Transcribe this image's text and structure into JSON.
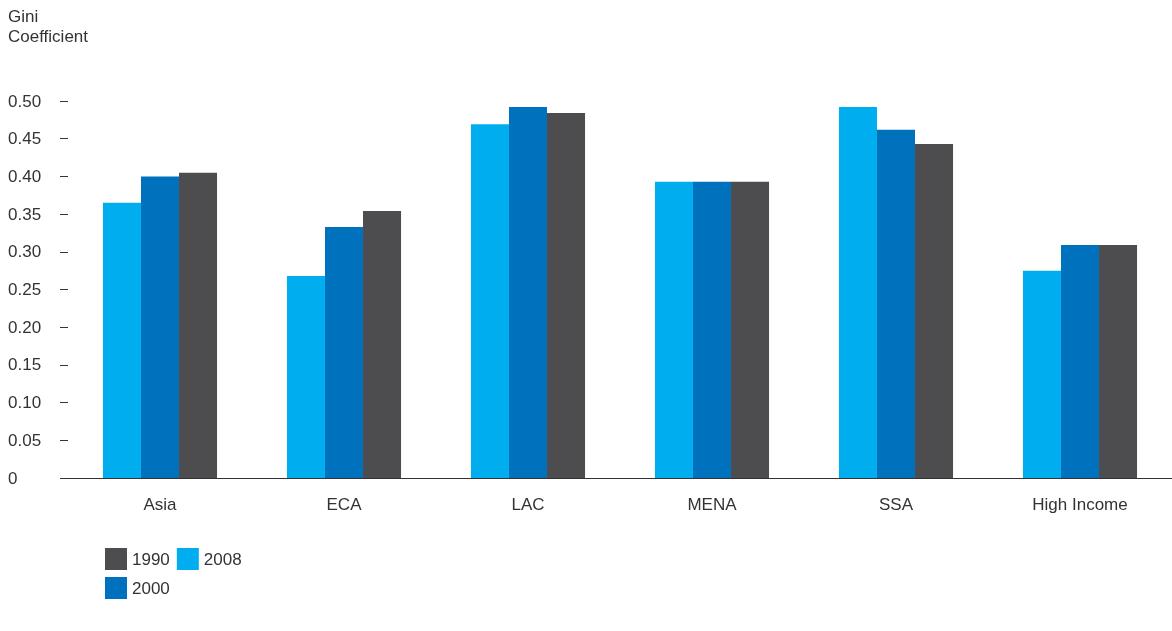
{
  "chart_data": {
    "type": "bar",
    "ylabel": "Gini Coefficient",
    "categories": [
      "Asia",
      "ECA",
      "LAC",
      "MENA",
      "SSA",
      "High Income"
    ],
    "series": [
      {
        "name": "2008",
        "color": "#00aeef",
        "values": [
          0.365,
          0.268,
          0.469,
          0.393,
          0.492,
          0.275
        ]
      },
      {
        "name": "2000",
        "color": "#0071bc",
        "values": [
          0.4,
          0.333,
          0.492,
          0.393,
          0.462,
          0.309
        ]
      },
      {
        "name": "1990",
        "color": "#4d4d4f",
        "values": [
          0.405,
          0.354,
          0.484,
          0.393,
          0.443,
          0.309
        ]
      }
    ],
    "ylim": [
      0,
      0.5
    ],
    "yticks": [
      0,
      {
        "value": 0.05,
        "label": "0.05"
      },
      {
        "value": 0.1,
        "label": "0.10"
      },
      {
        "value": 0.15,
        "label": "0.15"
      },
      {
        "value": 0.2,
        "label": "0.20"
      },
      {
        "value": 0.25,
        "label": "0.25"
      },
      {
        "value": 0.3,
        "label": "0.30"
      },
      {
        "value": 0.35,
        "label": "0.35"
      },
      {
        "value": 0.4,
        "label": "0.40"
      },
      {
        "value": 0.45,
        "label": "0.45"
      },
      {
        "value": 0.5,
        "label": "0.50"
      }
    ],
    "grid": false,
    "legend": "bottom left"
  }
}
